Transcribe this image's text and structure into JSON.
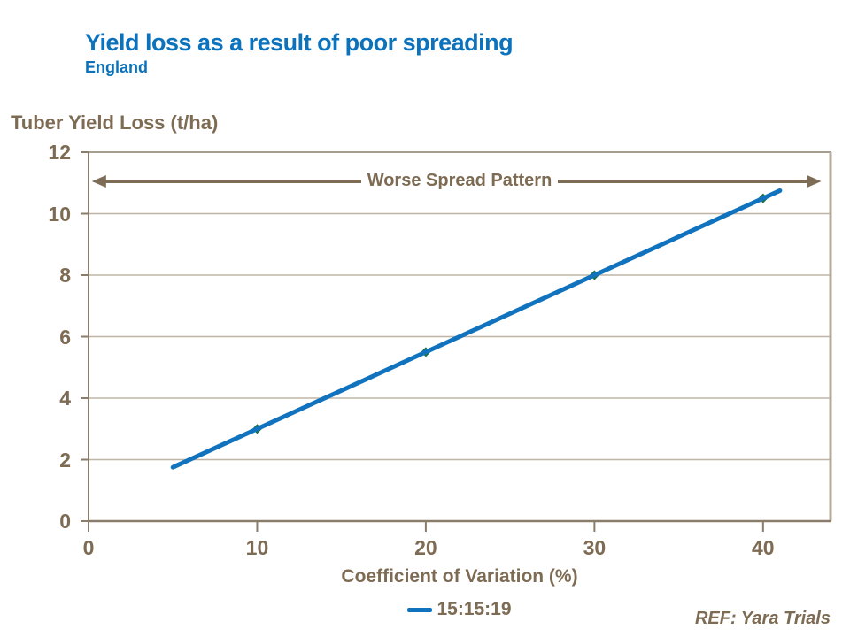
{
  "colors": {
    "title_blue": "#0D72BC",
    "line_blue": "#1173BD",
    "marker_green": "#1B7145",
    "text_brown": "#7D6B53",
    "axis_brown": "#8B7D6B",
    "grid": "#BFB5A6",
    "border_top": "#A69D90",
    "border_right": "#B5AB9C",
    "arrow_brown": "#7D6C56"
  },
  "header": {
    "title": "Yield loss as a result of poor spreading",
    "subtitle": "England"
  },
  "chart_data": {
    "type": "line",
    "title": "Yield loss as a result of poor spreading",
    "subtitle": "England",
    "xlabel": "Coefficient of Variation (%)",
    "ylabel": "Tuber Yield Loss (t/ha)",
    "xlim": [
      0,
      44
    ],
    "ylim": [
      0,
      12
    ],
    "x_ticks": [
      0,
      10,
      20,
      30,
      40
    ],
    "y_ticks": [
      0,
      2,
      4,
      6,
      8,
      10,
      12
    ],
    "grid": "horizontal",
    "legend_position": "bottom-center",
    "annotation": {
      "label": "Worse Spread Pattern",
      "arrow": "double-headed",
      "y_value": 11.05,
      "x_from": 0.2,
      "x_to": 43.45
    },
    "series": [
      {
        "name": "15:15:19",
        "x": [
          5,
          10,
          20,
          30,
          40,
          41
        ],
        "y": [
          1.75,
          3.0,
          5.5,
          8.0,
          10.5,
          10.75
        ],
        "markers": [
          [
            10,
            3.0
          ],
          [
            20,
            5.5
          ],
          [
            30,
            8.0
          ],
          [
            40,
            10.5
          ]
        ]
      }
    ]
  },
  "footnote": {
    "ref": "REF: Yara Trials"
  }
}
